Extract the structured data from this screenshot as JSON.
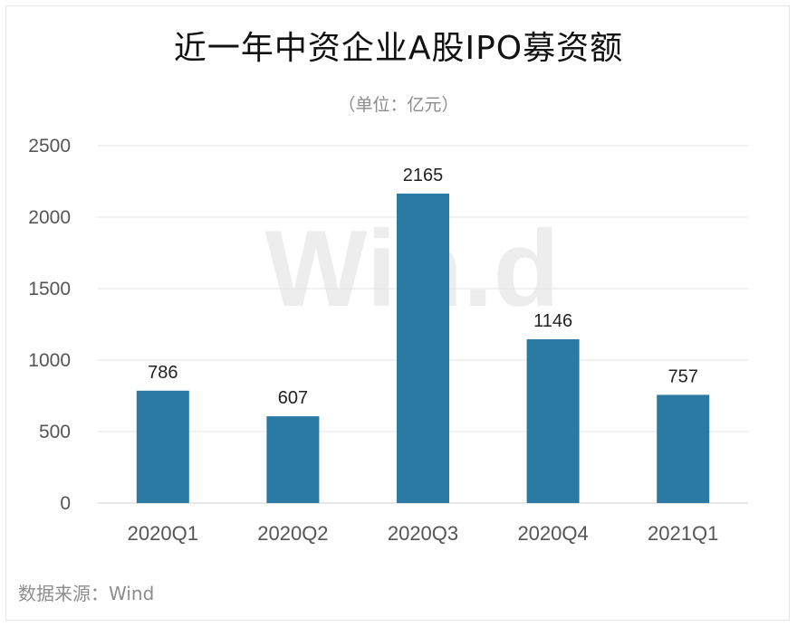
{
  "watermark": "Win.d",
  "source": "数据来源：Wind",
  "colors": {
    "bar": "#2a7aa3",
    "grid": "#e3e3e3",
    "axis": "#d0d0d0",
    "tick_text": "#555555",
    "label_text": "#222222"
  },
  "chart_data": {
    "type": "bar",
    "title": "近一年中资企业A股IPO募资额",
    "subtitle": "（单位：亿元）",
    "categories": [
      "2020Q1",
      "2020Q2",
      "2020Q3",
      "2020Q4",
      "2021Q1"
    ],
    "values": [
      786,
      607,
      2165,
      1146,
      757
    ],
    "data_labels": [
      "786",
      "607",
      "2165",
      "1146",
      "757"
    ],
    "ylim": [
      0,
      2500
    ],
    "yticks": [
      0,
      500,
      1000,
      1500,
      2000,
      2500
    ],
    "ytick_labels": [
      "0",
      "500",
      "1000",
      "1500",
      "2000",
      "2500"
    ],
    "grid": true,
    "legend": "none",
    "xlabel": "",
    "ylabel": ""
  }
}
